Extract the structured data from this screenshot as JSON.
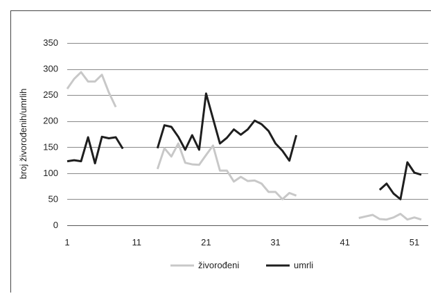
{
  "chart_data": {
    "type": "line",
    "ylabel": "broj živorođenih/umrlih",
    "xlabel": "",
    "title": "",
    "ylim": [
      0,
      350
    ],
    "yticks": [
      0,
      50,
      100,
      150,
      200,
      250,
      300,
      350
    ],
    "xlim": [
      1,
      53
    ],
    "xticks": [
      1,
      11,
      21,
      31,
      41,
      51
    ],
    "grid": "horizontal",
    "legend_position": "bottom",
    "series": [
      {
        "name": "živorođeni",
        "color": "#c8c8c8",
        "points": [
          [
            1,
            262
          ],
          [
            2,
            281
          ],
          [
            3,
            294
          ],
          [
            4,
            276
          ],
          [
            5,
            276
          ],
          [
            6,
            289
          ],
          [
            7,
            255
          ],
          [
            8,
            227
          ],
          null,
          [
            14,
            108
          ],
          [
            15,
            148
          ],
          [
            16,
            132
          ],
          [
            17,
            157
          ],
          [
            18,
            120
          ],
          [
            19,
            117
          ],
          [
            20,
            116
          ],
          [
            21,
            135
          ],
          [
            22,
            153
          ],
          [
            23,
            105
          ],
          [
            24,
            105
          ],
          [
            25,
            84
          ],
          [
            26,
            93
          ],
          [
            27,
            85
          ],
          [
            28,
            86
          ],
          [
            29,
            80
          ],
          [
            30,
            64
          ],
          [
            31,
            64
          ],
          [
            32,
            50
          ],
          [
            33,
            62
          ],
          [
            34,
            57
          ],
          null,
          [
            43,
            14
          ],
          [
            44,
            17
          ],
          [
            45,
            20
          ],
          [
            46,
            12
          ],
          [
            47,
            11
          ],
          [
            48,
            15
          ],
          [
            49,
            22
          ],
          [
            50,
            11
          ],
          [
            51,
            15
          ],
          [
            52,
            11
          ]
        ]
      },
      {
        "name": "umrli",
        "color": "#1e1e1e",
        "points": [
          [
            1,
            123
          ],
          [
            2,
            125
          ],
          [
            3,
            123
          ],
          [
            4,
            169
          ],
          [
            5,
            119
          ],
          [
            6,
            170
          ],
          [
            7,
            167
          ],
          [
            8,
            169
          ],
          [
            9,
            147
          ],
          null,
          [
            14,
            148
          ],
          [
            15,
            192
          ],
          [
            16,
            189
          ],
          [
            17,
            170
          ],
          [
            18,
            145
          ],
          [
            19,
            173
          ],
          [
            20,
            145
          ],
          [
            21,
            253
          ],
          [
            22,
            205
          ],
          [
            23,
            157
          ],
          [
            24,
            168
          ],
          [
            25,
            184
          ],
          [
            26,
            174
          ],
          [
            27,
            184
          ],
          [
            28,
            201
          ],
          [
            29,
            194
          ],
          [
            30,
            181
          ],
          [
            31,
            157
          ],
          [
            32,
            143
          ],
          [
            33,
            124
          ],
          [
            34,
            173
          ],
          null,
          [
            46,
            68
          ],
          [
            47,
            80
          ],
          [
            48,
            61
          ],
          [
            49,
            50
          ],
          [
            50,
            121
          ],
          [
            51,
            101
          ],
          [
            52,
            97
          ]
        ]
      }
    ]
  }
}
